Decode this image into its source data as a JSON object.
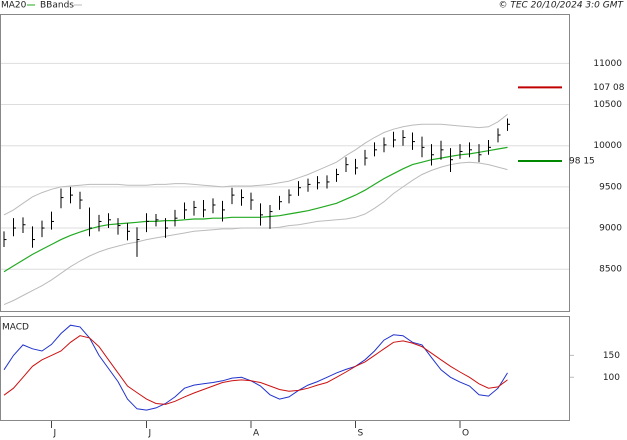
{
  "chart_data": [
    {
      "type": "ohlc",
      "source": "© TEC 20/10/2024 3:0 GMT",
      "categories": [
        null,
        null,
        null,
        null,
        null,
        "J",
        null,
        null,
        null,
        null,
        null,
        null,
        null,
        null,
        null,
        "J",
        null,
        null,
        null,
        null,
        null,
        null,
        null,
        null,
        null,
        null,
        "A",
        null,
        null,
        null,
        null,
        null,
        null,
        null,
        null,
        null,
        null,
        "S",
        null,
        null,
        null,
        null,
        null,
        null,
        null,
        null,
        null,
        null,
        "O",
        null,
        null,
        null,
        null,
        null
      ],
      "price": {
        "color": "#000000",
        "close": [
          8860,
          9000,
          9040,
          8860,
          9000,
          9080,
          9370,
          9400,
          9340,
          9000,
          9080,
          9100,
          9030,
          8960,
          8860,
          9080,
          9100,
          9000,
          9120,
          9220,
          9250,
          9220,
          9280,
          9220,
          9400,
          9370,
          9340,
          9160,
          9200,
          9320,
          9400,
          9490,
          9530,
          9550,
          9560,
          9650,
          9770,
          9730,
          9850,
          9950,
          10010,
          10070,
          10100,
          10050,
          9980,
          9890,
          9950,
          9830,
          9930,
          9950,
          9890,
          9980,
          10130,
          10260
        ],
        "high": [
          8960,
          9120,
          9130,
          9020,
          9090,
          9200,
          9480,
          9500,
          9440,
          9250,
          9160,
          9180,
          9120,
          9060,
          9010,
          9180,
          9170,
          9120,
          9220,
          9310,
          9330,
          9340,
          9360,
          9330,
          9490,
          9470,
          9430,
          9300,
          9280,
          9390,
          9470,
          9570,
          9600,
          9630,
          9640,
          9720,
          9860,
          9840,
          9950,
          10040,
          10100,
          10170,
          10190,
          10160,
          10110,
          10020,
          10060,
          9970,
          10020,
          10040,
          10020,
          10070,
          10210,
          10330
        ],
        "low": [
          8770,
          8900,
          8940,
          8760,
          8890,
          8980,
          9240,
          9300,
          9230,
          8900,
          8960,
          9000,
          8920,
          8850,
          8650,
          8950,
          9020,
          8880,
          9020,
          9110,
          9150,
          9130,
          9180,
          9080,
          9290,
          9270,
          9220,
          9030,
          8990,
          9220,
          9300,
          9390,
          9440,
          9470,
          9480,
          9560,
          9680,
          9650,
          9760,
          9870,
          9920,
          9980,
          10000,
          9950,
          9860,
          9760,
          9830,
          9680,
          9840,
          9860,
          9800,
          9890,
          10040,
          10180
        ]
      },
      "series": [
        {
          "name": "MA20",
          "color": "#22aa22",
          "values": [
            8470,
            8540,
            8610,
            8680,
            8740,
            8800,
            8860,
            8910,
            8950,
            8990,
            9020,
            9040,
            9050,
            9060,
            9070,
            9080,
            9080,
            9090,
            9090,
            9100,
            9110,
            9110,
            9120,
            9120,
            9130,
            9130,
            9130,
            9130,
            9140,
            9150,
            9170,
            9190,
            9210,
            9240,
            9270,
            9300,
            9350,
            9400,
            9460,
            9530,
            9600,
            9660,
            9720,
            9770,
            9800,
            9830,
            9850,
            9870,
            9890,
            9900,
            9920,
            9940,
            9960,
            9980
          ]
        }
      ],
      "bands": {
        "name": "BBands",
        "color": "#bbbbbb",
        "upper": [
          9160,
          9220,
          9300,
          9380,
          9430,
          9470,
          9500,
          9510,
          9520,
          9530,
          9530,
          9530,
          9530,
          9520,
          9520,
          9520,
          9530,
          9530,
          9540,
          9540,
          9530,
          9520,
          9510,
          9500,
          9510,
          9510,
          9510,
          9520,
          9530,
          9550,
          9570,
          9610,
          9650,
          9700,
          9750,
          9800,
          9880,
          9950,
          10030,
          10100,
          10160,
          10200,
          10230,
          10250,
          10260,
          10260,
          10260,
          10250,
          10240,
          10230,
          10220,
          10230,
          10290,
          10380
        ],
        "lower": [
          8070,
          8120,
          8180,
          8240,
          8300,
          8370,
          8450,
          8530,
          8600,
          8660,
          8710,
          8750,
          8780,
          8810,
          8830,
          8860,
          8880,
          8900,
          8920,
          8940,
          8960,
          8970,
          8980,
          8990,
          8990,
          9000,
          9000,
          9000,
          9000,
          9010,
          9030,
          9040,
          9060,
          9080,
          9090,
          9100,
          9110,
          9130,
          9170,
          9240,
          9320,
          9420,
          9500,
          9580,
          9650,
          9700,
          9740,
          9770,
          9790,
          9800,
          9790,
          9770,
          9740,
          9710
        ]
      },
      "levels": [
        {
          "value": 10708,
          "label": "107 08",
          "color": "#c00000"
        },
        {
          "value": 9815,
          "label": "98 15",
          "color": "#008800"
        }
      ],
      "ylim": [
        7980,
        11600
      ],
      "yticks": [
        8500,
        9000,
        9500,
        10000,
        10500,
        11000
      ],
      "grid": true
    },
    {
      "type": "line",
      "title": "MACD",
      "series": [
        {
          "color": "#2233cc",
          "values": [
            117,
            150,
            174,
            165,
            160,
            175,
            200,
            219,
            215,
            190,
            150,
            120,
            90,
            50,
            28,
            25,
            30,
            40,
            55,
            75,
            82,
            85,
            88,
            92,
            98,
            100,
            92,
            80,
            60,
            50,
            55,
            70,
            82,
            90,
            100,
            110,
            118,
            125,
            140,
            160,
            185,
            197,
            195,
            180,
            174,
            145,
            117,
            100,
            89,
            80,
            60,
            57,
            75,
            110
          ]
        },
        {
          "color": "#cc1111",
          "values": [
            59,
            75,
            100,
            125,
            140,
            150,
            160,
            180,
            195,
            190,
            170,
            140,
            110,
            80,
            65,
            50,
            40,
            38,
            45,
            55,
            64,
            72,
            80,
            88,
            92,
            94,
            92,
            88,
            80,
            72,
            68,
            70,
            75,
            82,
            88,
            100,
            112,
            125,
            135,
            150,
            165,
            180,
            183,
            178,
            170,
            155,
            140,
            125,
            112,
            100,
            85,
            75,
            78,
            94
          ]
        }
      ],
      "ylim": [
        0,
        240
      ],
      "yticks": [
        100,
        150
      ]
    }
  ]
}
